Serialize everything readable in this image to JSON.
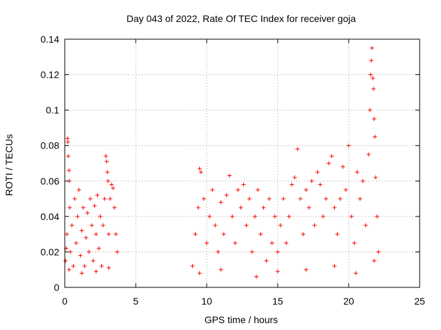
{
  "chart_data": {
    "type": "scatter",
    "title": "Day 043 of 2022, Rate Of TEC Index for receiver goja",
    "xlabel": "GPS time / hours",
    "ylabel": "ROTI / TECUs",
    "xlim": [
      0,
      25
    ],
    "ylim": [
      0,
      0.14
    ],
    "x_ticks": [
      "0",
      "5",
      "10",
      "15",
      "20",
      "25"
    ],
    "y_ticks": [
      "0",
      "0.02",
      "0.04",
      "0.06",
      "0.08",
      "0.1",
      "0.12",
      "0.14"
    ],
    "grid": true,
    "marker": "plus",
    "color": "#ff0000",
    "series": [
      {
        "points": [
          [
            0.05,
            0.015
          ],
          [
            0.1,
            0.022
          ],
          [
            0.15,
            0.03
          ],
          [
            0.2,
            0.084
          ],
          [
            0.22,
            0.082
          ],
          [
            0.25,
            0.074
          ],
          [
            0.3,
            0.066
          ],
          [
            0.32,
            0.06
          ],
          [
            0.35,
            0.045
          ],
          [
            0.4,
            0.02
          ],
          [
            0.5,
            0.035
          ],
          [
            0.6,
            0.012
          ],
          [
            0.7,
            0.05
          ],
          [
            0.8,
            0.025
          ],
          [
            0.9,
            0.04
          ],
          [
            1.0,
            0.055
          ],
          [
            1.1,
            0.018
          ],
          [
            1.2,
            0.032
          ],
          [
            1.3,
            0.045
          ],
          [
            1.4,
            0.012
          ],
          [
            1.5,
            0.028
          ],
          [
            1.6,
            0.042
          ],
          [
            1.7,
            0.02
          ],
          [
            1.8,
            0.05
          ],
          [
            1.9,
            0.035
          ],
          [
            2.0,
            0.015
          ],
          [
            2.1,
            0.046
          ],
          [
            2.2,
            0.03
          ],
          [
            2.3,
            0.052
          ],
          [
            2.4,
            0.022
          ],
          [
            2.5,
            0.04
          ],
          [
            2.6,
            0.012
          ],
          [
            2.7,
            0.035
          ],
          [
            2.8,
            0.05
          ],
          [
            2.9,
            0.074
          ],
          [
            2.95,
            0.071
          ],
          [
            3.0,
            0.065
          ],
          [
            3.05,
            0.06
          ],
          [
            3.1,
            0.03
          ],
          [
            3.2,
            0.05
          ],
          [
            3.3,
            0.058
          ],
          [
            3.4,
            0.056
          ],
          [
            3.5,
            0.045
          ],
          [
            3.6,
            0.03
          ],
          [
            3.7,
            0.02
          ],
          [
            0.3,
            0.01
          ],
          [
            1.2,
            0.008
          ],
          [
            2.2,
            0.009
          ],
          [
            3.1,
            0.011
          ],
          [
            9.0,
            0.012
          ],
          [
            9.2,
            0.03
          ],
          [
            9.4,
            0.045
          ],
          [
            9.5,
            0.067
          ],
          [
            9.6,
            0.065
          ],
          [
            9.8,
            0.05
          ],
          [
            10.0,
            0.025
          ],
          [
            10.2,
            0.04
          ],
          [
            10.4,
            0.055
          ],
          [
            10.6,
            0.035
          ],
          [
            10.8,
            0.02
          ],
          [
            11.0,
            0.048
          ],
          [
            11.2,
            0.03
          ],
          [
            11.4,
            0.052
          ],
          [
            11.6,
            0.063
          ],
          [
            11.8,
            0.04
          ],
          [
            12.0,
            0.025
          ],
          [
            12.2,
            0.055
          ],
          [
            12.4,
            0.045
          ],
          [
            12.6,
            0.058
          ],
          [
            12.8,
            0.035
          ],
          [
            13.0,
            0.05
          ],
          [
            13.2,
            0.02
          ],
          [
            13.4,
            0.04
          ],
          [
            13.6,
            0.055
          ],
          [
            13.8,
            0.03
          ],
          [
            14.0,
            0.045
          ],
          [
            14.2,
            0.015
          ],
          [
            14.4,
            0.05
          ],
          [
            14.6,
            0.025
          ],
          [
            14.8,
            0.04
          ],
          [
            15.0,
            0.02
          ],
          [
            15.2,
            0.035
          ],
          [
            15.4,
            0.05
          ],
          [
            15.6,
            0.025
          ],
          [
            15.8,
            0.04
          ],
          [
            16.0,
            0.058
          ],
          [
            16.2,
            0.062
          ],
          [
            16.4,
            0.078
          ],
          [
            16.6,
            0.05
          ],
          [
            16.8,
            0.03
          ],
          [
            17.0,
            0.055
          ],
          [
            17.2,
            0.045
          ],
          [
            17.4,
            0.06
          ],
          [
            17.6,
            0.035
          ],
          [
            17.8,
            0.065
          ],
          [
            18.0,
            0.058
          ],
          [
            18.2,
            0.04
          ],
          [
            18.4,
            0.05
          ],
          [
            18.6,
            0.07
          ],
          [
            18.8,
            0.074
          ],
          [
            19.0,
            0.045
          ],
          [
            19.2,
            0.03
          ],
          [
            19.4,
            0.05
          ],
          [
            19.6,
            0.068
          ],
          [
            19.8,
            0.055
          ],
          [
            20.0,
            0.08
          ],
          [
            20.2,
            0.04
          ],
          [
            20.4,
            0.025
          ],
          [
            20.6,
            0.065
          ],
          [
            20.8,
            0.05
          ],
          [
            21.0,
            0.06
          ],
          [
            21.2,
            0.035
          ],
          [
            21.4,
            0.075
          ],
          [
            21.5,
            0.1
          ],
          [
            21.55,
            0.12
          ],
          [
            21.6,
            0.128
          ],
          [
            21.65,
            0.135
          ],
          [
            21.7,
            0.118
          ],
          [
            21.75,
            0.112
          ],
          [
            21.8,
            0.095
          ],
          [
            21.85,
            0.085
          ],
          [
            21.9,
            0.062
          ],
          [
            22.0,
            0.04
          ],
          [
            22.1,
            0.02
          ],
          [
            9.5,
            0.008
          ],
          [
            11.0,
            0.01
          ],
          [
            13.5,
            0.006
          ],
          [
            15.0,
            0.009
          ],
          [
            17.0,
            0.01
          ],
          [
            19.0,
            0.012
          ],
          [
            20.5,
            0.008
          ],
          [
            21.8,
            0.015
          ]
        ]
      }
    ]
  }
}
